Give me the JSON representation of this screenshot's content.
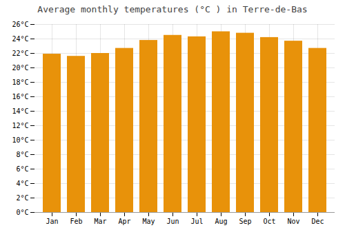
{
  "chart_data": {
    "type": "bar",
    "title": "Average monthly temperatures (°C ) in Terre-de-Bas",
    "categories": [
      "Jan",
      "Feb",
      "Mar",
      "Apr",
      "May",
      "Jun",
      "Jul",
      "Aug",
      "Sep",
      "Oct",
      "Nov",
      "Dec"
    ],
    "values": [
      21.9,
      21.6,
      22.0,
      22.7,
      23.8,
      24.5,
      24.3,
      25.0,
      24.8,
      24.2,
      23.7,
      22.7
    ],
    "color": "#E8920A",
    "ylim": [
      0,
      26
    ],
    "yticks": [
      {
        "value": 0,
        "label": "0°C"
      },
      {
        "value": 2,
        "label": "2°C"
      },
      {
        "value": 4,
        "label": "4°C"
      },
      {
        "value": 6,
        "label": "6°C"
      },
      {
        "value": 8,
        "label": "8°C"
      },
      {
        "value": 10,
        "label": "10°C"
      },
      {
        "value": 12,
        "label": "12°C"
      },
      {
        "value": 14,
        "label": "14°C"
      },
      {
        "value": 16,
        "label": "16°C"
      },
      {
        "value": 18,
        "label": "18°C"
      },
      {
        "value": 20,
        "label": "20°C"
      },
      {
        "value": 22,
        "label": "22°C"
      },
      {
        "value": 24,
        "label": "24°C"
      },
      {
        "value": 26,
        "label": "26°C"
      }
    ],
    "grid": true
  }
}
